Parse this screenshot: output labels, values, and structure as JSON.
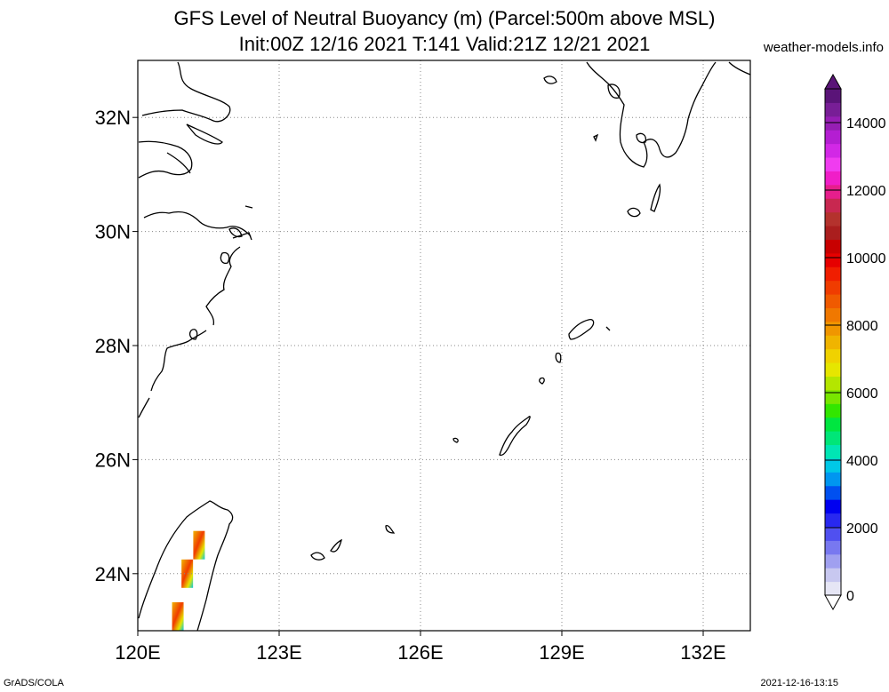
{
  "title_line1": "GFS Level of Neutral Buoyancy (m) (Parcel:500m above MSL)",
  "title_line2": "Init:00Z 12/16 2021 T:141 Valid:21Z 12/21 2021",
  "credit": "weather-models.info",
  "footer_left": "GrADS/COLA",
  "footer_right": "2021-12-16-13:15",
  "map": {
    "lon_range": [
      120,
      133
    ],
    "lat_range": [
      23,
      33
    ],
    "lon_ticks": [
      {
        "value": 120,
        "label": "120E"
      },
      {
        "value": 123,
        "label": "123E"
      },
      {
        "value": 126,
        "label": "126E"
      },
      {
        "value": 129,
        "label": "129E"
      },
      {
        "value": 132,
        "label": "132E"
      }
    ],
    "lat_ticks": [
      {
        "value": 24,
        "label": "24N"
      },
      {
        "value": 26,
        "label": "26N"
      },
      {
        "value": 28,
        "label": "28N"
      },
      {
        "value": 30,
        "label": "30N"
      },
      {
        "value": 32,
        "label": "32N"
      }
    ],
    "grid": "dotted",
    "coastline_color": "#000000"
  },
  "colorbar": {
    "range": [
      0,
      15000
    ],
    "labels": [
      {
        "value": 0,
        "label": "0"
      },
      {
        "value": 2000,
        "label": "2000"
      },
      {
        "value": 4000,
        "label": "4000"
      },
      {
        "value": 6000,
        "label": "6000"
      },
      {
        "value": 8000,
        "label": "8000"
      },
      {
        "value": 10000,
        "label": "10000"
      },
      {
        "value": 12000,
        "label": "12000"
      },
      {
        "value": 14000,
        "label": "14000"
      }
    ],
    "colors": [
      "#e6e6f5",
      "#c8c8f0",
      "#a0a0f0",
      "#7878f0",
      "#5050f0",
      "#2828f0",
      "#0000f0",
      "#0050f0",
      "#0096f0",
      "#00c8e6",
      "#00e6b4",
      "#00e678",
      "#00e640",
      "#32e600",
      "#78e600",
      "#b4e600",
      "#e6e600",
      "#f0d200",
      "#f0b400",
      "#f09600",
      "#f07800",
      "#f05a00",
      "#f03c00",
      "#f01e00",
      "#e60000",
      "#c80000",
      "#aa1e1e",
      "#b4322d",
      "#c82850",
      "#e61e8c",
      "#f01ec8",
      "#f03cf0",
      "#d228e6",
      "#b41ed2",
      "#961eb4",
      "#781e96",
      "#5a1478"
    ]
  },
  "shaded_cells": [
    {
      "lon": 121.3,
      "lat": 24.5,
      "value": 9500
    },
    {
      "lon": 121.05,
      "lat": 24.0,
      "value": 8500
    },
    {
      "lon": 120.85,
      "lat": 23.25,
      "value": 8000
    }
  ]
}
